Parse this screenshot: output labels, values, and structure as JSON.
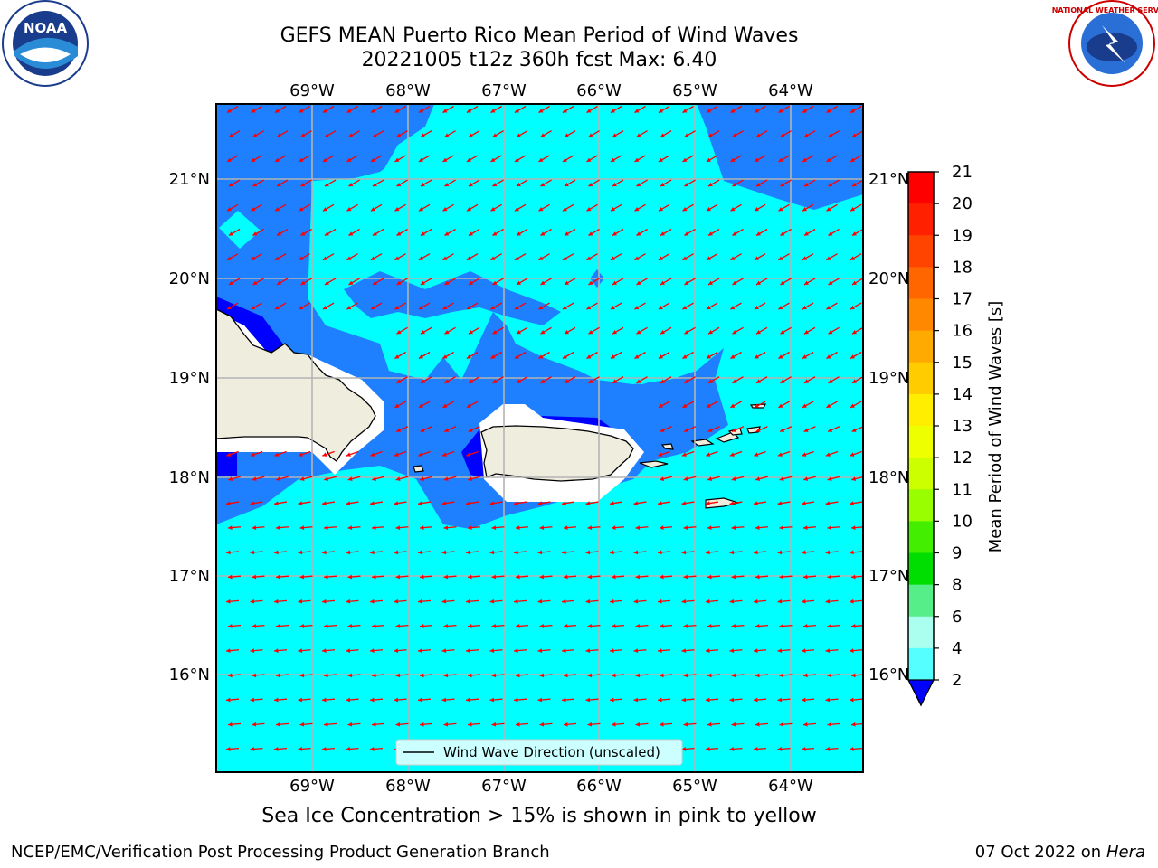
{
  "title": {
    "line1": "GEFS MEAN Puerto Rico Mean Period of Wind Waves",
    "line2": "20221005 t12z 360h fcst   Max: 6.40"
  },
  "logos": {
    "noaa_text": "NOAA",
    "noaa_ring_text": "NATIONAL OCEANIC AND ATMOSPHERIC ADMINISTRATION · U.S. DEPARTMENT OF COMMERCE",
    "nws_ring_text": "NATIONAL WEATHER SERVICE"
  },
  "map": {
    "lon_labels": [
      "69°W",
      "68°W",
      "67°W",
      "66°W",
      "65°W",
      "64°W"
    ],
    "lat_labels": [
      "21°N",
      "20°N",
      "19°N",
      "18°N",
      "17°N",
      "16°N"
    ],
    "legend_label": "Wind Wave Direction (unscaled)",
    "arrow_color": "#ff0000",
    "land_color": "#efedde"
  },
  "colorbar": {
    "label": "Mean Period of Wind Waves [s]",
    "ticks": [
      "21",
      "20",
      "19",
      "18",
      "17",
      "16",
      "15",
      "14",
      "13",
      "12",
      "11",
      "10",
      "9",
      "8",
      "6",
      "4",
      "2"
    ],
    "colors": [
      "#ff0000",
      "#ff2000",
      "#ff4400",
      "#ff6600",
      "#ff8800",
      "#ffaa00",
      "#ffcc00",
      "#ffee00",
      "#eeff00",
      "#ccff00",
      "#99ff00",
      "#44ee00",
      "#00dd00",
      "#00ee44",
      "#55ff88",
      "#aaffee",
      "#55ffff",
      "#00ffff",
      "#1e7fff",
      "#0000ff"
    ]
  },
  "caption": "Sea Ice Concentration > 15% is shown in pink to yellow",
  "footer": {
    "left": "NCEP/EMC/Verification Post Processing Product Generation Branch",
    "date": "07 Oct 2022 on",
    "machine": "Hera"
  }
}
